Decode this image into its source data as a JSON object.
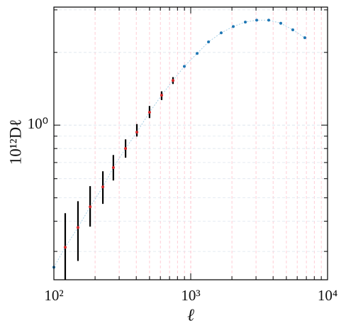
{
  "chart_data": {
    "type": "errorbar",
    "xlabel": "ℓ",
    "ylabel": "10¹²Dℓ",
    "xscale": "log",
    "yscale": "log",
    "xlim": [
      100,
      10000
    ],
    "ylim": [
      0.229,
      3.08
    ],
    "xticks": [
      {
        "value": 100,
        "label": "10²"
      },
      {
        "value": 1000,
        "label": "10³"
      },
      {
        "value": 10000,
        "label": "10⁴"
      }
    ],
    "yticks": [
      {
        "value": 1,
        "label": "10⁰"
      }
    ],
    "grid": true,
    "x": [
      100,
      121,
      150,
      184,
      228,
      272,
      334,
      404,
      500,
      613,
      742,
      898,
      1114,
      1349,
      1670,
      2046,
      2506,
      3034,
      3715,
      4550,
      5572,
      6823
    ],
    "series": [
      {
        "color": "#1f77b4",
        "line_color": "#a8d0e6",
        "point_colors": [
          "#1f77b4",
          "#d62728",
          "#d62728",
          "#d62728",
          "#d62728",
          "#d62728",
          "#d62728",
          "#d62728",
          "#d62728",
          "#d62728",
          "#d62728",
          "#1f77b4",
          "#1f77b4",
          "#1f77b4",
          "#1f77b4",
          "#1f77b4",
          "#1f77b4",
          "#1f77b4",
          "#1f77b4",
          "#1f77b4",
          "#1f77b4",
          "#1f77b4"
        ],
        "values": [
          0.258,
          0.312,
          0.377,
          0.459,
          0.555,
          0.667,
          0.8,
          0.935,
          1.13,
          1.33,
          1.53,
          1.75,
          1.98,
          2.21,
          2.41,
          2.56,
          2.67,
          2.72,
          2.72,
          2.64,
          2.48,
          2.3
        ],
        "lower": [
          null,
          0.229,
          0.274,
          0.38,
          0.472,
          0.59,
          0.733,
          0.897,
          1.07,
          1.27,
          1.48,
          null,
          null,
          null,
          null,
          null,
          null,
          null,
          null,
          null,
          null,
          null
        ],
        "upper": [
          null,
          0.432,
          0.484,
          0.559,
          0.644,
          0.752,
          0.873,
          1.01,
          1.2,
          1.38,
          1.58,
          null,
          null,
          null,
          null,
          null,
          null,
          null,
          null,
          null,
          null,
          null
        ]
      }
    ]
  }
}
